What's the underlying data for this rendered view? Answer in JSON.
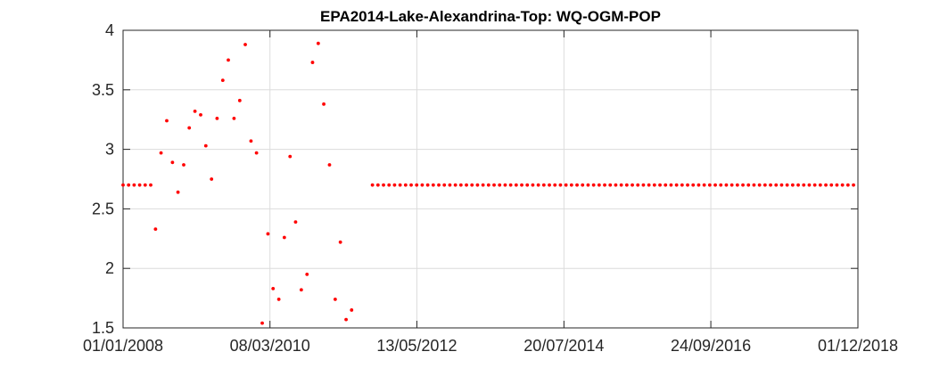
{
  "chart_data": {
    "type": "scatter",
    "title": "EPA2014-Lake-Alexandrina-Top: WQ-OGM-POP",
    "xlabel": "",
    "ylabel": "",
    "x_axis_type": "date",
    "xlim": [
      "2008-01-01",
      "2018-12-01"
    ],
    "ylim": [
      1.5,
      4
    ],
    "grid": true,
    "marker_color": "#ff0000",
    "x_tick_labels": [
      "01/01/2008",
      "08/03/2010",
      "13/05/2012",
      "20/07/2014",
      "24/09/2016",
      "01/12/2018"
    ],
    "x_ticks": [
      "2008-01-01",
      "2010-03-08",
      "2012-05-13",
      "2014-07-20",
      "2016-09-24",
      "2018-12-01"
    ],
    "y_ticks": [
      1.5,
      2,
      2.5,
      3,
      3.5,
      4
    ],
    "y_tick_labels": [
      "1.5",
      "2",
      "2.5",
      "3",
      "3.5",
      "4"
    ],
    "constant_series": {
      "y": 2.7,
      "segments": [
        {
          "start": "2008-01-01",
          "end": "2008-06-01",
          "step_days": 30
        },
        {
          "start": "2011-09-15",
          "end": "2018-12-01",
          "step_days": 30
        }
      ]
    },
    "points": [
      [
        "2008-06-25",
        2.33
      ],
      [
        "2008-07-25",
        2.97
      ],
      [
        "2008-08-25",
        3.24
      ],
      [
        "2008-09-25",
        2.89
      ],
      [
        "2008-10-25",
        2.64
      ],
      [
        "2008-11-25",
        2.87
      ],
      [
        "2008-12-25",
        3.18
      ],
      [
        "2009-01-25",
        3.32
      ],
      [
        "2009-02-25",
        3.29
      ],
      [
        "2009-03-25",
        3.03
      ],
      [
        "2009-04-25",
        2.75
      ],
      [
        "2009-05-25",
        3.26
      ],
      [
        "2009-06-25",
        3.58
      ],
      [
        "2009-07-25",
        3.75
      ],
      [
        "2009-08-25",
        3.26
      ],
      [
        "2009-09-25",
        3.41
      ],
      [
        "2009-10-25",
        3.88
      ],
      [
        "2009-11-25",
        3.07
      ],
      [
        "2009-12-25",
        2.97
      ],
      [
        "2010-01-25",
        1.54
      ],
      [
        "2010-02-25",
        2.29
      ],
      [
        "2010-03-25",
        1.83
      ],
      [
        "2010-04-25",
        1.74
      ],
      [
        "2010-05-25",
        2.26
      ],
      [
        "2010-06-25",
        2.94
      ],
      [
        "2010-07-25",
        2.39
      ],
      [
        "2010-08-25",
        1.82
      ],
      [
        "2010-09-25",
        1.95
      ],
      [
        "2010-10-25",
        3.73
      ],
      [
        "2010-11-25",
        3.89
      ],
      [
        "2010-12-25",
        3.38
      ],
      [
        "2011-01-25",
        2.87
      ],
      [
        "2011-02-25",
        1.74
      ],
      [
        "2011-03-25",
        2.22
      ],
      [
        "2011-04-25",
        1.57
      ],
      [
        "2011-05-25",
        1.65
      ]
    ]
  }
}
